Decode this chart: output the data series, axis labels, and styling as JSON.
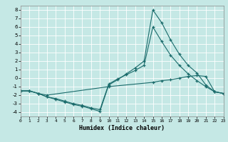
{
  "xlabel": "Humidex (Indice chaleur)",
  "xlim": [
    0,
    23
  ],
  "ylim": [
    -4.5,
    8.5
  ],
  "yticks": [
    -4,
    -3,
    -2,
    -1,
    0,
    1,
    2,
    3,
    4,
    5,
    6,
    7,
    8
  ],
  "xticks": [
    0,
    1,
    2,
    3,
    4,
    5,
    6,
    7,
    8,
    9,
    10,
    11,
    12,
    13,
    14,
    15,
    16,
    17,
    18,
    19,
    20,
    21,
    22,
    23
  ],
  "bg_color": "#c5e8e5",
  "grid_color": "#b0d8d5",
  "line_color": "#1a6b6b",
  "series": [
    {
      "x": [
        0,
        1,
        2,
        3,
        10,
        15,
        16,
        17,
        18,
        19,
        20,
        21,
        22,
        23
      ],
      "y": [
        -1.5,
        -1.5,
        -1.8,
        -2.0,
        -1.0,
        -0.5,
        -0.3,
        -0.2,
        0.0,
        0.2,
        0.3,
        0.2,
        -1.6,
        -1.8
      ]
    },
    {
      "x": [
        0,
        1,
        2,
        3,
        4,
        5,
        6,
        7,
        8,
        9,
        10,
        11,
        12,
        13,
        14,
        15,
        16,
        17,
        18,
        19,
        20,
        21,
        22,
        23
      ],
      "y": [
        -1.5,
        -1.5,
        -1.8,
        -2.2,
        -2.5,
        -2.8,
        -3.1,
        -3.3,
        -3.6,
        -3.9,
        -0.8,
        -0.2,
        0.5,
        1.2,
        2.0,
        8.0,
        6.5,
        4.5,
        2.8,
        1.5,
        0.6,
        -0.8,
        -1.6,
        -1.8
      ]
    },
    {
      "x": [
        0,
        1,
        2,
        3,
        4,
        5,
        6,
        7,
        8,
        9,
        10,
        11,
        12,
        13,
        14,
        15,
        16,
        17,
        18,
        19,
        20,
        21,
        22,
        23
      ],
      "y": [
        -1.5,
        -1.5,
        -1.8,
        -2.2,
        -2.4,
        -2.7,
        -3.0,
        -3.2,
        -3.5,
        -3.7,
        -0.7,
        -0.1,
        0.4,
        0.9,
        1.5,
        6.0,
        4.3,
        2.7,
        1.5,
        0.5,
        -0.3,
        -1.0,
        -1.6,
        -1.8
      ]
    }
  ]
}
